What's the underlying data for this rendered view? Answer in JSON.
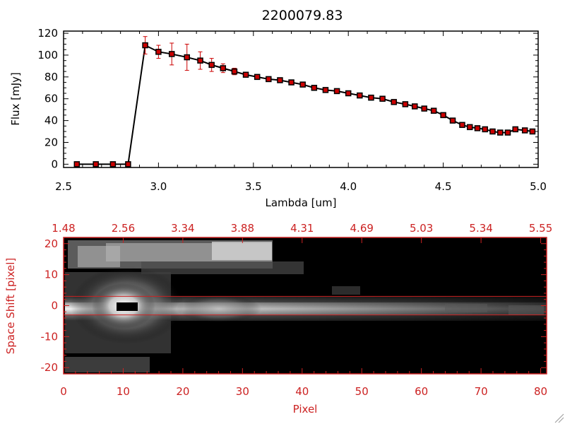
{
  "title": "2200079.83",
  "chart_data": [
    {
      "type": "line",
      "xlabel": "Lambda [um]",
      "ylabel": "Flux [mJy]",
      "xlim": [
        2.5,
        5.0
      ],
      "ylim": [
        -3,
        122
      ],
      "x_ticks": [
        "2.5",
        "3.0",
        "3.5",
        "4.0",
        "4.5",
        "5.0"
      ],
      "y_ticks": [
        "0",
        "20",
        "40",
        "60",
        "80",
        "100",
        "120"
      ],
      "series": [
        {
          "x": [
            2.57,
            2.67,
            2.76,
            2.84,
            2.93,
            3.0,
            3.07,
            3.15,
            3.22,
            3.28,
            3.34,
            3.4,
            3.46,
            3.52,
            3.58,
            3.64,
            3.7,
            3.76,
            3.82,
            3.88,
            3.94,
            4.0,
            4.06,
            4.12,
            4.18,
            4.24,
            4.3,
            4.35,
            4.4,
            4.45,
            4.5,
            4.55,
            4.6,
            4.64,
            4.68,
            4.72,
            4.76,
            4.8,
            4.84,
            4.88,
            4.93,
            4.97
          ],
          "y": [
            0,
            0,
            0,
            0,
            109,
            103,
            101,
            98,
            95,
            91,
            88,
            85,
            82,
            80,
            78,
            77,
            75,
            73,
            70,
            68,
            67,
            65,
            63,
            61,
            60,
            57,
            55,
            53,
            51,
            49,
            45,
            40,
            36,
            34,
            33,
            32,
            30,
            29,
            29,
            32,
            31,
            30
          ],
          "err": [
            0,
            0,
            0,
            0,
            8,
            6,
            10,
            12,
            8,
            6,
            4,
            3,
            0,
            0,
            0,
            0,
            0,
            0,
            0,
            0,
            0,
            0,
            0,
            0,
            0,
            0,
            0,
            0,
            0,
            0,
            0,
            0,
            0,
            0,
            0,
            0,
            0,
            0,
            0,
            0,
            0,
            0
          ]
        }
      ],
      "marker_color": "#cc0000",
      "line_color": "#000000",
      "error_color": "#cc0000"
    },
    {
      "type": "heatmap",
      "xlabel": "Pixel",
      "ylabel": "Space Shift [pixel]",
      "xlim": [
        0,
        81
      ],
      "ylim": [
        -22,
        22
      ],
      "x_ticks": [
        "0",
        "10",
        "20",
        "30",
        "40",
        "50",
        "60",
        "70",
        "80"
      ],
      "y_ticks": [
        "-20",
        "-10",
        "0",
        "10",
        "20"
      ],
      "top_ticks": [
        "1.48",
        "2.56",
        "3.34",
        "3.88",
        "4.31",
        "4.69",
        "5.03",
        "5.34",
        "5.55"
      ],
      "extraction_band": [
        -3,
        3
      ],
      "colormap": "grayscale",
      "axis_color": "#cc2222"
    }
  ]
}
